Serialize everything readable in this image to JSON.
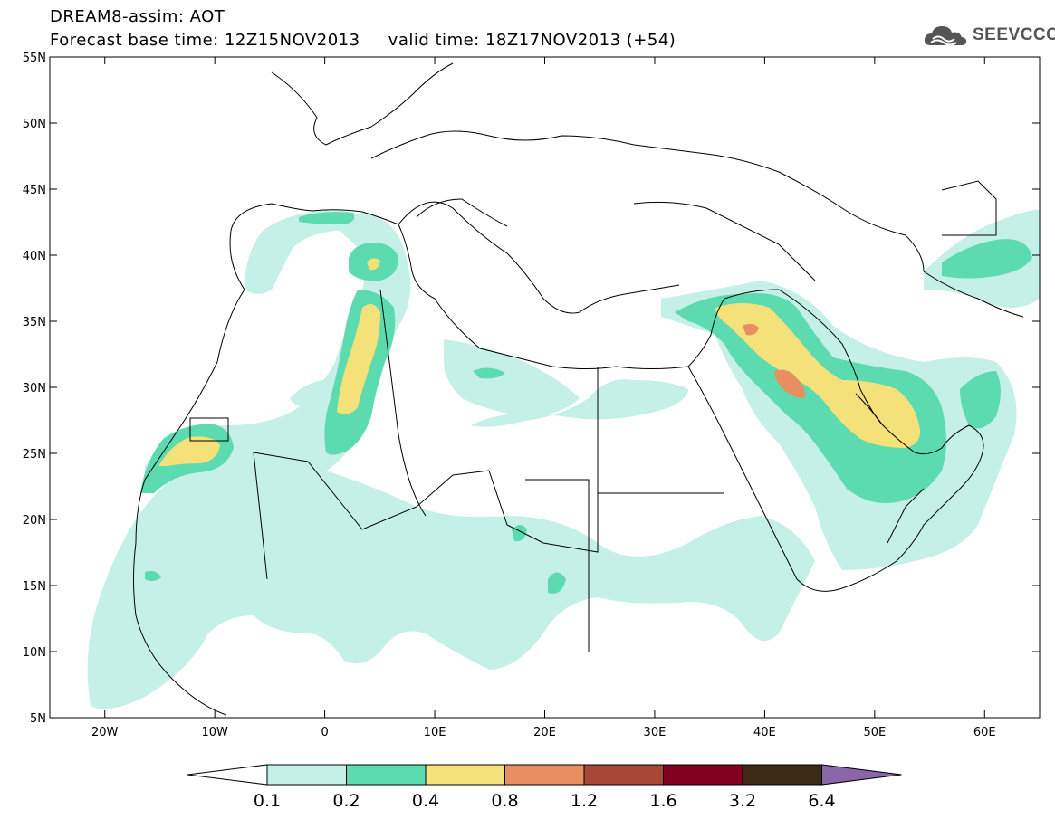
{
  "header": {
    "line1": "DREAM8-assim: AOT",
    "line2_base": "Forecast base time: 12Z15NOV2013",
    "line2_valid": "valid time: 18Z17NOV2013 (+54)"
  },
  "logo": {
    "text": "SEEVCCC",
    "icon": "cloud-logo-icon"
  },
  "axes": {
    "lat_ticks": [
      "55N",
      "50N",
      "45N",
      "40N",
      "35N",
      "30N",
      "25N",
      "20N",
      "15N",
      "10N",
      "5N"
    ],
    "lon_ticks": [
      "20W",
      "10W",
      "0",
      "10E",
      "20E",
      "30E",
      "40E",
      "50E",
      "60E"
    ],
    "lat_values": [
      55,
      50,
      45,
      40,
      35,
      30,
      25,
      20,
      15,
      10,
      5
    ],
    "lon_values": [
      -20,
      -10,
      0,
      10,
      20,
      30,
      40,
      50,
      60
    ],
    "lon_range": [
      -25,
      65
    ],
    "lat_range": [
      5,
      55
    ]
  },
  "colorbar": {
    "labels": [
      "0.1",
      "0.2",
      "0.4",
      "0.8",
      "1.2",
      "1.6",
      "3.2",
      "6.4"
    ],
    "colors": [
      "#c5f0e8",
      "#5ddbb0",
      "#f5e17a",
      "#e88e63",
      "#a74737",
      "#800020",
      "#3c2a15"
    ],
    "under_color": "#ffffff",
    "over_color": "#8a66a8"
  },
  "field": {
    "variable": "AOT",
    "level_colors": {
      "0.1": "#c5f0e8",
      "0.2": "#5ddbb0",
      "0.4": "#f5e17a",
      "0.8": "#e88e63"
    }
  }
}
